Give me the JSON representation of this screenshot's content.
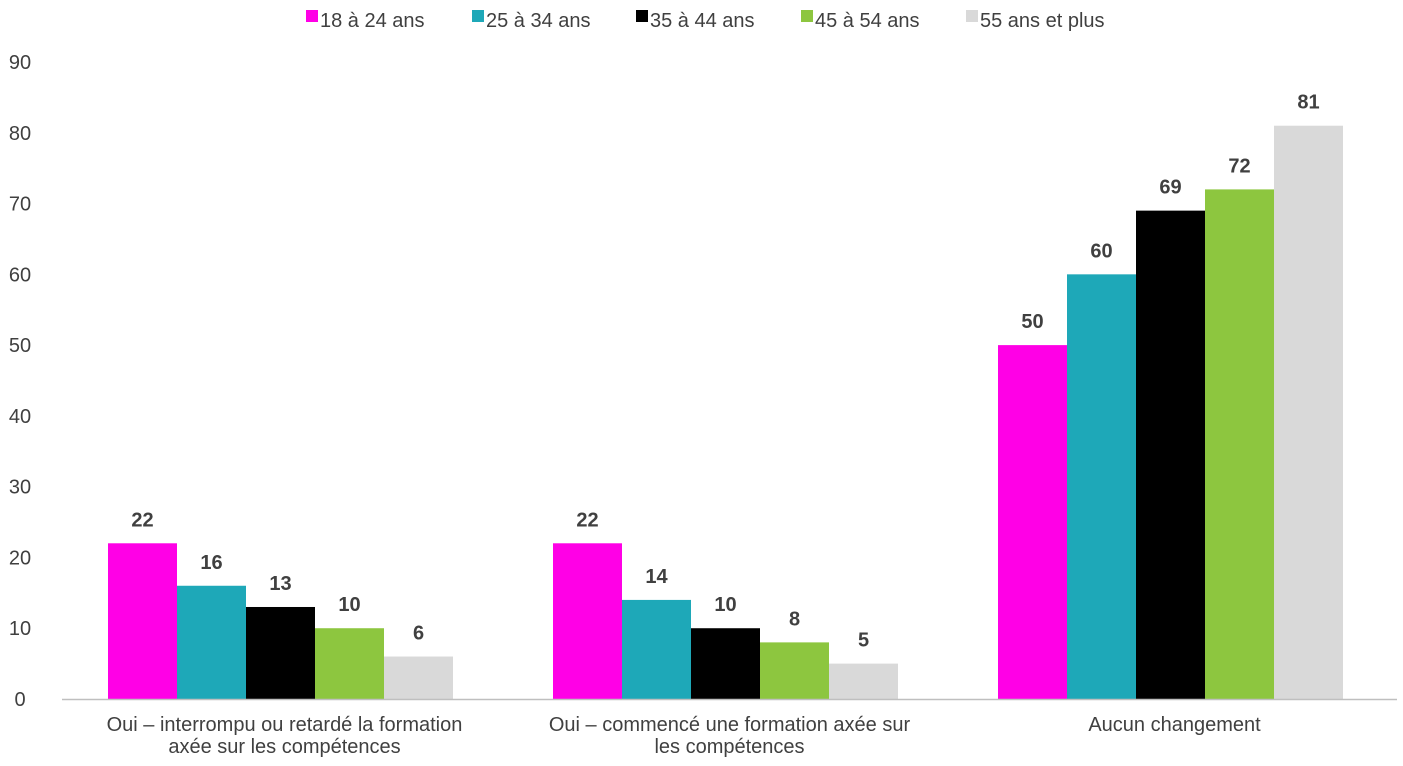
{
  "chart_data": {
    "type": "bar",
    "categories": [
      [
        "Oui – interrompu ou retardé la formation",
        "axée sur les compétences"
      ],
      [
        "Oui – commencé une formation axée sur",
        "les compétences"
      ],
      [
        "Aucun changement"
      ]
    ],
    "series": [
      {
        "name": "18 à 24 ans",
        "color": "#FF00E6",
        "values": [
          22,
          22,
          50
        ]
      },
      {
        "name": "25 à 34 ans",
        "color": "#1EA8B8",
        "values": [
          16,
          14,
          60
        ]
      },
      {
        "name": "35 à 44 ans",
        "color": "#000000",
        "values": [
          13,
          10,
          69
        ]
      },
      {
        "name": "45 à 54 ans",
        "color": "#8DC63F",
        "values": [
          10,
          8,
          72
        ]
      },
      {
        "name": "55 ans et plus",
        "color": "#D9D9D9",
        "values": [
          6,
          5,
          81
        ]
      }
    ],
    "ylim": [
      0,
      90
    ],
    "yticks": [
      0,
      10,
      20,
      30,
      40,
      50,
      60,
      70,
      80,
      90
    ],
    "grid": false,
    "legend_position": "top-center",
    "title": "",
    "xlabel": "",
    "ylabel": ""
  }
}
